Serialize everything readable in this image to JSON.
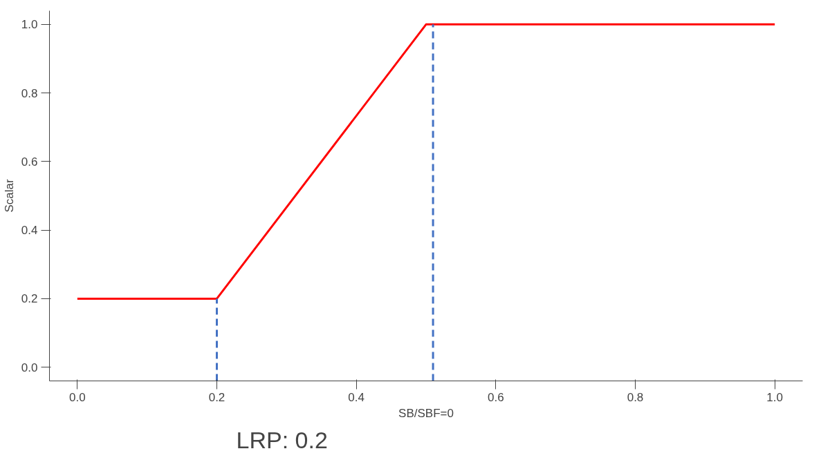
{
  "chart_data": {
    "type": "line",
    "xlabel": "SB/SBF=0",
    "ylabel": "Scalar",
    "xlim": [
      -0.04,
      1.04
    ],
    "ylim": [
      -0.04,
      1.04
    ],
    "xticks": [
      {
        "value": 0,
        "label": "0.0"
      },
      0.2,
      0.4,
      0.6,
      0.8,
      {
        "value": 1,
        "label": "1.0"
      }
    ],
    "yticks": [
      {
        "value": 0,
        "label": "0.0"
      },
      0.2,
      0.4,
      0.6,
      0.8,
      {
        "value": 1,
        "label": "1.0"
      }
    ],
    "grid": false,
    "series": [
      {
        "color": "#ff0000",
        "x": [
          0,
          0.2,
          0.5,
          1
        ],
        "values": [
          0.2,
          0.2,
          1.0,
          1.0
        ],
        "line_style": "solid"
      },
      {
        "color": "#4472c4",
        "x": [
          0.2,
          0.2
        ],
        "values": [
          -0.04,
          0.2
        ],
        "line_style": "dashed"
      },
      {
        "color": "#4472c4",
        "x": [
          0.51,
          0.51
        ],
        "values": [
          -0.04,
          1.0
        ],
        "line_style": "dashed"
      }
    ],
    "annotations": [
      "LRP: 0.2"
    ]
  }
}
